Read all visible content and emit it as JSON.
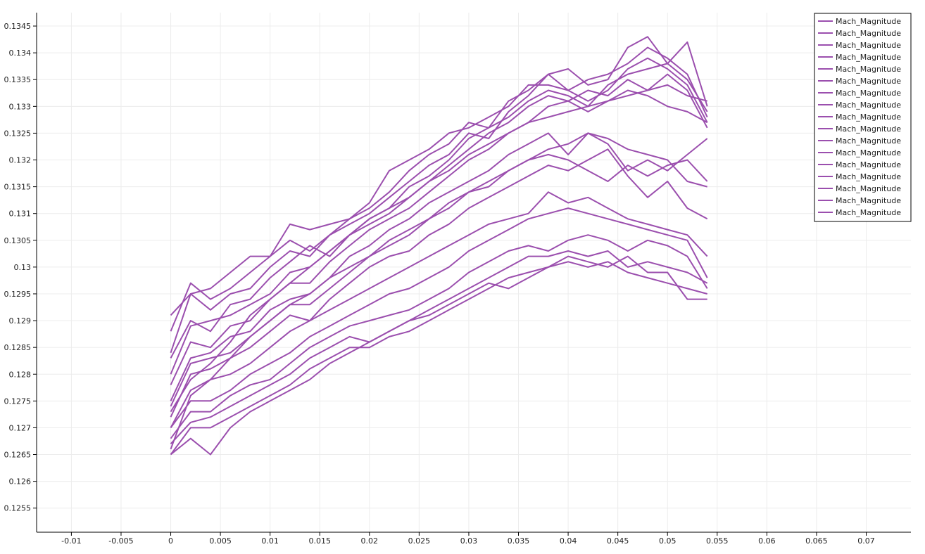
{
  "chart_data": {
    "type": "line",
    "title": "",
    "xlabel": "",
    "ylabel": "",
    "xlim": [
      -0.0135,
      0.0745
    ],
    "ylim": [
      0.12505,
      0.13475
    ],
    "x_ticks": [
      -0.01,
      -0.005,
      0,
      0.005,
      0.01,
      0.015,
      0.02,
      0.025,
      0.03,
      0.035,
      0.04,
      0.045,
      0.05,
      0.055,
      0.06,
      0.065,
      0.07
    ],
    "x_tick_labels": [
      "-0.01",
      "-0.005",
      "0",
      "0.005",
      "0.01",
      "0.015",
      "0.02",
      "0.025",
      "0.03",
      "0.035",
      "0.04",
      "0.045",
      "0.05",
      "0.055",
      "0.06",
      "0.065",
      "0.07"
    ],
    "y_ticks": [
      0.1255,
      0.126,
      0.1265,
      0.127,
      0.1275,
      0.128,
      0.1285,
      0.129,
      0.1295,
      0.13,
      0.1305,
      0.131,
      0.1315,
      0.132,
      0.1325,
      0.133,
      0.1335,
      0.134,
      0.1345
    ],
    "y_tick_labels": [
      "0.1255",
      "0.126",
      "0.1265",
      "0.127",
      "0.1275",
      "0.128",
      "0.1285",
      "0.129",
      "0.1295",
      "0.13",
      "0.1305",
      "0.131",
      "0.1315",
      "0.132",
      "0.1325",
      "0.133",
      "0.1335",
      "0.134",
      "0.1345"
    ],
    "grid": true,
    "legend_position": "top-right",
    "color": "#9b4fae",
    "x": [
      0,
      0.002,
      0.004,
      0.006,
      0.008,
      0.01,
      0.012,
      0.014,
      0.016,
      0.018,
      0.02,
      0.022,
      0.024,
      0.026,
      0.028,
      0.03,
      0.032,
      0.034,
      0.036,
      0.038,
      0.04,
      0.042,
      0.044,
      0.046,
      0.048,
      0.05,
      0.052,
      0.054
    ],
    "series": [
      {
        "name": "Mach_Magnitude",
        "values": [
          0.1291,
          0.1295,
          0.1296,
          0.1299,
          0.1302,
          0.1302,
          0.1308,
          0.1307,
          0.1308,
          0.1309,
          0.1312,
          0.1318,
          0.132,
          0.1322,
          0.1325,
          0.1326,
          0.1328,
          0.133,
          0.1334,
          0.1334,
          0.1333,
          0.1335,
          0.1336,
          0.1338,
          0.1341,
          0.1339,
          0.1336,
          0.1328
        ]
      },
      {
        "name": "Mach_Magnitude",
        "values": [
          0.1288,
          0.1297,
          0.1294,
          0.1296,
          0.1299,
          0.1302,
          0.1305,
          0.1303,
          0.1306,
          0.1309,
          0.1311,
          0.1314,
          0.1318,
          0.1321,
          0.1323,
          0.1327,
          0.1326,
          0.1331,
          0.1333,
          0.1336,
          0.1337,
          0.1334,
          0.1335,
          0.1341,
          0.1343,
          0.1338,
          0.1342,
          0.133
        ]
      },
      {
        "name": "Mach_Magnitude",
        "values": [
          0.1284,
          0.1295,
          0.1292,
          0.1295,
          0.1296,
          0.13,
          0.1303,
          0.1302,
          0.1306,
          0.1308,
          0.131,
          0.1313,
          0.1316,
          0.1319,
          0.1321,
          0.1325,
          0.1324,
          0.1329,
          0.1332,
          0.1336,
          0.1333,
          0.1331,
          0.1333,
          0.1337,
          0.1339,
          0.1337,
          0.1334,
          0.1327
        ]
      },
      {
        "name": "Mach_Magnitude",
        "values": [
          0.1283,
          0.129,
          0.1288,
          0.1293,
          0.1294,
          0.1298,
          0.1301,
          0.1304,
          0.1302,
          0.1306,
          0.1309,
          0.1311,
          0.1315,
          0.1317,
          0.132,
          0.1324,
          0.1326,
          0.1328,
          0.1331,
          0.1333,
          0.1332,
          0.133,
          0.1334,
          0.1336,
          0.1337,
          0.1338,
          0.1335,
          0.1329
        ]
      },
      {
        "name": "Mach_Magnitude",
        "values": [
          0.128,
          0.1289,
          0.129,
          0.1291,
          0.1293,
          0.1295,
          0.1299,
          0.13,
          0.1303,
          0.1306,
          0.1308,
          0.131,
          0.1313,
          0.1316,
          0.1319,
          0.1322,
          0.1325,
          0.1327,
          0.133,
          0.1332,
          0.1331,
          0.1333,
          0.1332,
          0.1335,
          0.1333,
          0.1336,
          0.1333,
          0.1326
        ]
      },
      {
        "name": "Mach_Magnitude",
        "values": [
          0.1278,
          0.1286,
          0.1285,
          0.1289,
          0.129,
          0.1294,
          0.1297,
          0.1297,
          0.1301,
          0.1304,
          0.1307,
          0.1309,
          0.1311,
          0.1314,
          0.1317,
          0.132,
          0.1322,
          0.1325,
          0.1327,
          0.133,
          0.1331,
          0.1329,
          0.1331,
          0.1333,
          0.1332,
          0.133,
          0.1329,
          0.1327
        ]
      },
      {
        "name": "Mach_Magnitude",
        "values": [
          0.1275,
          0.1283,
          0.1284,
          0.1287,
          0.1288,
          0.1292,
          0.1294,
          0.1295,
          0.1298,
          0.1302,
          0.1304,
          0.1307,
          0.1309,
          0.1312,
          0.1314,
          0.1316,
          0.1318,
          0.1321,
          0.1323,
          0.1325,
          0.1321,
          0.1325,
          0.1323,
          0.1318,
          0.132,
          0.1318,
          0.1321,
          0.1324
        ]
      },
      {
        "name": "Mach_Magnitude",
        "values": [
          0.1274,
          0.1282,
          0.1283,
          0.1284,
          0.1287,
          0.129,
          0.1293,
          0.1293,
          0.1296,
          0.1299,
          0.1302,
          0.1304,
          0.1306,
          0.1309,
          0.1311,
          0.1314,
          0.1315,
          0.1318,
          0.132,
          0.1321,
          0.132,
          0.1318,
          0.1316,
          0.1319,
          0.1317,
          0.1319,
          0.132,
          0.1316
        ]
      },
      {
        "name": "Mach_Magnitude",
        "values": [
          0.1272,
          0.128,
          0.1281,
          0.1283,
          0.1285,
          0.1288,
          0.1291,
          0.129,
          0.1294,
          0.1297,
          0.13,
          0.1302,
          0.1303,
          0.1306,
          0.1308,
          0.1311,
          0.1313,
          0.1315,
          0.1317,
          0.1319,
          0.1318,
          0.132,
          0.1322,
          0.1317,
          0.1313,
          0.1316,
          0.1311,
          0.1309
        ]
      },
      {
        "name": "Mach_Magnitude",
        "values": [
          0.127,
          0.1277,
          0.1279,
          0.128,
          0.1282,
          0.1285,
          0.1288,
          0.129,
          0.1292,
          0.1294,
          0.1296,
          0.1298,
          0.13,
          0.1302,
          0.1304,
          0.1306,
          0.1308,
          0.1309,
          0.131,
          0.1314,
          0.1312,
          0.1313,
          0.1311,
          0.1309,
          0.1308,
          0.1307,
          0.1306,
          0.1302
        ]
      },
      {
        "name": "Mach_Magnitude",
        "values": [
          0.127,
          0.1275,
          0.1275,
          0.1277,
          0.128,
          0.1282,
          0.1284,
          0.1287,
          0.1289,
          0.1291,
          0.1293,
          0.1295,
          0.1296,
          0.1298,
          0.13,
          0.1303,
          0.1305,
          0.1307,
          0.1309,
          0.131,
          0.1311,
          0.131,
          0.1309,
          0.1308,
          0.1307,
          0.1306,
          0.1305,
          0.1298
        ]
      },
      {
        "name": "Mach_Magnitude",
        "values": [
          0.1268,
          0.1273,
          0.1273,
          0.1276,
          0.1278,
          0.1279,
          0.1282,
          0.1285,
          0.1287,
          0.1289,
          0.129,
          0.1291,
          0.1292,
          0.1294,
          0.1296,
          0.1299,
          0.1301,
          0.1303,
          0.1304,
          0.1303,
          0.1305,
          0.1306,
          0.1305,
          0.1303,
          0.1305,
          0.1304,
          0.1302,
          0.1296
        ]
      },
      {
        "name": "Mach_Magnitude",
        "values": [
          0.1267,
          0.1271,
          0.1272,
          0.1274,
          0.1276,
          0.1278,
          0.128,
          0.1283,
          0.1285,
          0.1287,
          0.1286,
          0.1288,
          0.129,
          0.1292,
          0.1294,
          0.1296,
          0.1298,
          0.13,
          0.1302,
          0.1302,
          0.1303,
          0.1302,
          0.1303,
          0.13,
          0.1301,
          0.13,
          0.1299,
          0.1297
        ]
      },
      {
        "name": "Mach_Magnitude",
        "values": [
          0.1265,
          0.127,
          0.127,
          0.1272,
          0.1274,
          0.1276,
          0.1278,
          0.1281,
          0.1283,
          0.1285,
          0.1285,
          0.1287,
          0.1288,
          0.129,
          0.1292,
          0.1294,
          0.1296,
          0.1298,
          0.1299,
          0.13,
          0.1301,
          0.13,
          0.1301,
          0.1299,
          0.1298,
          0.1297,
          0.1296,
          0.1295
        ]
      },
      {
        "name": "Mach_Magnitude",
        "values": [
          0.1265,
          0.1268,
          0.1265,
          0.127,
          0.1273,
          0.1275,
          0.1277,
          0.1279,
          0.1282,
          0.1284,
          0.1286,
          0.1288,
          0.129,
          0.1291,
          0.1293,
          0.1295,
          0.1297,
          0.1296,
          0.1298,
          0.13,
          0.1302,
          0.1301,
          0.13,
          0.1302,
          0.1299,
          0.1299,
          0.1294,
          0.1294
        ]
      },
      {
        "name": "Mach_Magnitude",
        "values": [
          0.1273,
          0.1279,
          0.1282,
          0.1286,
          0.1291,
          0.1294,
          0.1297,
          0.13,
          0.1303,
          0.1306,
          0.1309,
          0.1311,
          0.1313,
          0.1316,
          0.1318,
          0.1321,
          0.1323,
          0.1325,
          0.1327,
          0.1328,
          0.1329,
          0.133,
          0.1331,
          0.1332,
          0.1333,
          0.1334,
          0.1332,
          0.1331
        ]
      },
      {
        "name": "Mach_Magnitude",
        "values": [
          0.1266,
          0.1276,
          0.1279,
          0.1283,
          0.1287,
          0.129,
          0.1293,
          0.1295,
          0.1298,
          0.13,
          0.1302,
          0.1305,
          0.1307,
          0.1309,
          0.1312,
          0.1314,
          0.1316,
          0.1318,
          0.132,
          0.1322,
          0.1323,
          0.1325,
          0.1324,
          0.1322,
          0.1321,
          0.132,
          0.1316,
          0.1315
        ]
      }
    ]
  }
}
